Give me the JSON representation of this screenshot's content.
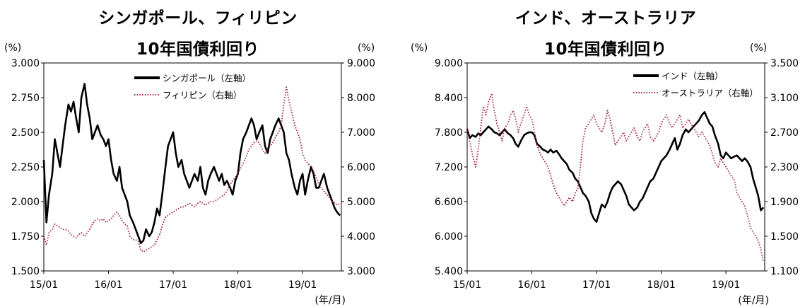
{
  "chart_data": [
    {
      "type": "line",
      "title": "シンガポール、フィリピン",
      "subtitle": "10年国債利回り",
      "ylabel_left": "(%)",
      "ylabel_right": "(%)",
      "xlabel": "(年/月)",
      "x_ticks": [
        "15/01",
        "16/01",
        "17/01",
        "18/01",
        "19/01"
      ],
      "y_left_ticks": [
        "3.000",
        "2.750",
        "2.500",
        "2.250",
        "2.000",
        "1.750",
        "1.500"
      ],
      "y_right_ticks": [
        "9.000",
        "8.000",
        "7.000",
        "6.000",
        "5.000",
        "4.000",
        "3.000"
      ],
      "ylim_left": [
        1.5,
        3.0
      ],
      "ylim_right": [
        3.0,
        9.0
      ],
      "xlim": [
        2015.0,
        2019.6
      ],
      "legend_position": "top-center",
      "series": [
        {
          "name": "シンガポール（左軸）",
          "axis": "left",
          "color": "#000000",
          "style": "solid",
          "x": [
            2015.0,
            2015.04,
            2015.08,
            2015.13,
            2015.17,
            2015.21,
            2015.25,
            2015.29,
            2015.33,
            2015.38,
            2015.42,
            2015.46,
            2015.5,
            2015.54,
            2015.58,
            2015.63,
            2015.67,
            2015.71,
            2015.75,
            2015.79,
            2015.83,
            2015.88,
            2015.92,
            2015.96,
            2016.0,
            2016.04,
            2016.08,
            2016.13,
            2016.17,
            2016.21,
            2016.25,
            2016.29,
            2016.33,
            2016.38,
            2016.42,
            2016.46,
            2016.5,
            2016.54,
            2016.58,
            2016.63,
            2016.67,
            2016.71,
            2016.75,
            2016.79,
            2016.83,
            2016.88,
            2016.92,
            2016.96,
            2017.0,
            2017.04,
            2017.08,
            2017.13,
            2017.17,
            2017.21,
            2017.25,
            2017.29,
            2017.33,
            2017.38,
            2017.42,
            2017.46,
            2017.5,
            2017.54,
            2017.58,
            2017.63,
            2017.67,
            2017.71,
            2017.75,
            2017.79,
            2017.83,
            2017.88,
            2017.92,
            2017.96,
            2018.0,
            2018.04,
            2018.08,
            2018.13,
            2018.17,
            2018.21,
            2018.25,
            2018.29,
            2018.33,
            2018.38,
            2018.42,
            2018.46,
            2018.5,
            2018.54,
            2018.58,
            2018.63,
            2018.67,
            2018.71,
            2018.75,
            2018.79,
            2018.83,
            2018.88,
            2018.92,
            2018.96,
            2019.0,
            2019.04,
            2019.08,
            2019.13,
            2019.17,
            2019.21,
            2019.25,
            2019.29,
            2019.33,
            2019.38,
            2019.42,
            2019.46,
            2019.5,
            2019.54,
            2019.58
          ],
          "values": [
            2.3,
            1.85,
            2.05,
            2.2,
            2.45,
            2.35,
            2.25,
            2.4,
            2.55,
            2.7,
            2.65,
            2.72,
            2.6,
            2.5,
            2.75,
            2.85,
            2.7,
            2.6,
            2.45,
            2.5,
            2.55,
            2.48,
            2.45,
            2.4,
            2.45,
            2.3,
            2.2,
            2.15,
            2.25,
            2.1,
            2.05,
            2.0,
            1.9,
            1.85,
            1.8,
            1.75,
            1.7,
            1.72,
            1.8,
            1.75,
            1.78,
            1.85,
            1.95,
            1.9,
            2.05,
            2.25,
            2.4,
            2.45,
            2.5,
            2.35,
            2.25,
            2.3,
            2.2,
            2.15,
            2.1,
            2.15,
            2.2,
            2.15,
            2.25,
            2.1,
            2.05,
            2.15,
            2.2,
            2.25,
            2.2,
            2.15,
            2.2,
            2.12,
            2.15,
            2.1,
            2.05,
            2.15,
            2.2,
            2.35,
            2.45,
            2.5,
            2.55,
            2.6,
            2.55,
            2.45,
            2.5,
            2.55,
            2.4,
            2.35,
            2.45,
            2.5,
            2.55,
            2.6,
            2.55,
            2.5,
            2.35,
            2.3,
            2.2,
            2.1,
            2.05,
            2.15,
            2.2,
            2.05,
            2.15,
            2.25,
            2.2,
            2.1,
            2.1,
            2.15,
            2.2,
            2.1,
            2.05,
            2.0,
            1.95,
            1.92,
            1.9
          ]
        },
        {
          "name": "フィリピン（右軸）",
          "axis": "right",
          "color": "#a51b3b",
          "style": "dotted",
          "x": [
            2015.0,
            2015.04,
            2015.08,
            2015.13,
            2015.17,
            2015.21,
            2015.25,
            2015.29,
            2015.33,
            2015.38,
            2015.42,
            2015.46,
            2015.5,
            2015.54,
            2015.58,
            2015.63,
            2015.67,
            2015.71,
            2015.75,
            2015.79,
            2015.83,
            2015.88,
            2015.92,
            2015.96,
            2016.0,
            2016.04,
            2016.08,
            2016.13,
            2016.17,
            2016.21,
            2016.25,
            2016.29,
            2016.33,
            2016.38,
            2016.42,
            2016.46,
            2016.5,
            2016.54,
            2016.58,
            2016.63,
            2016.67,
            2016.71,
            2016.75,
            2016.79,
            2016.83,
            2016.88,
            2016.92,
            2016.96,
            2017.0,
            2017.04,
            2017.08,
            2017.13,
            2017.17,
            2017.21,
            2017.25,
            2017.29,
            2017.33,
            2017.38,
            2017.42,
            2017.46,
            2017.5,
            2017.54,
            2017.58,
            2017.63,
            2017.67,
            2017.71,
            2017.75,
            2017.79,
            2017.83,
            2017.88,
            2017.92,
            2017.96,
            2018.0,
            2018.04,
            2018.08,
            2018.13,
            2018.17,
            2018.21,
            2018.25,
            2018.29,
            2018.33,
            2018.38,
            2018.42,
            2018.46,
            2018.5,
            2018.54,
            2018.58,
            2018.63,
            2018.67,
            2018.71,
            2018.75,
            2018.79,
            2018.83,
            2018.88,
            2018.92,
            2018.96,
            2019.0,
            2019.04,
            2019.08,
            2019.13,
            2019.17,
            2019.21,
            2019.25,
            2019.29,
            2019.33,
            2019.38,
            2019.42,
            2019.46,
            2019.5,
            2019.54,
            2019.58
          ],
          "values": [
            4.0,
            3.75,
            4.1,
            4.2,
            4.35,
            4.3,
            4.25,
            4.2,
            4.2,
            4.15,
            4.05,
            4.0,
            3.95,
            4.05,
            4.1,
            4.0,
            4.1,
            4.2,
            4.35,
            4.45,
            4.5,
            4.45,
            4.5,
            4.4,
            4.45,
            4.5,
            4.6,
            4.7,
            4.6,
            4.45,
            4.35,
            4.3,
            4.0,
            3.9,
            3.9,
            3.85,
            3.6,
            3.55,
            3.6,
            3.65,
            3.7,
            3.75,
            3.9,
            4.05,
            4.3,
            4.55,
            4.6,
            4.65,
            4.7,
            4.75,
            4.8,
            4.85,
            4.85,
            4.9,
            4.95,
            4.9,
            4.85,
            4.95,
            5.0,
            4.95,
            4.9,
            4.95,
            5.0,
            5.0,
            5.05,
            5.1,
            5.15,
            5.2,
            5.3,
            5.5,
            5.6,
            5.7,
            5.8,
            5.95,
            6.1,
            6.3,
            6.5,
            6.6,
            6.7,
            6.75,
            6.7,
            6.5,
            6.4,
            6.55,
            6.6,
            6.7,
            6.85,
            7.0,
            7.2,
            7.8,
            8.3,
            7.9,
            7.6,
            7.2,
            7.0,
            6.8,
            6.4,
            6.2,
            6.1,
            6.0,
            5.9,
            5.7,
            5.5,
            5.4,
            5.3,
            5.2,
            5.1,
            5.0,
            4.95,
            4.9,
            4.95
          ]
        }
      ]
    },
    {
      "type": "line",
      "title": "インド、オーストラリア",
      "subtitle": "10年国債利回り",
      "ylabel_left": "(%)",
      "ylabel_right": "(%)",
      "xlabel": "(年/月)",
      "x_ticks": [
        "15/01",
        "16/01",
        "17/01",
        "18/01",
        "19/01"
      ],
      "y_left_ticks": [
        "9.000",
        "8.400",
        "7.800",
        "7.200",
        "6.600",
        "6.000",
        "5.400"
      ],
      "y_right_ticks": [
        "3.500",
        "3.100",
        "2.700",
        "2.300",
        "1.900",
        "1.500",
        "1.100"
      ],
      "ylim_left": [
        5.4,
        9.0
      ],
      "ylim_right": [
        1.1,
        3.5
      ],
      "xlim": [
        2015.0,
        2019.6
      ],
      "legend_position": "top-right",
      "series": [
        {
          "name": "インド（左軸）",
          "axis": "left",
          "color": "#000000",
          "style": "solid",
          "x": [
            2015.0,
            2015.04,
            2015.08,
            2015.13,
            2015.17,
            2015.21,
            2015.25,
            2015.29,
            2015.33,
            2015.38,
            2015.42,
            2015.46,
            2015.5,
            2015.54,
            2015.58,
            2015.63,
            2015.67,
            2015.71,
            2015.75,
            2015.79,
            2015.83,
            2015.88,
            2015.92,
            2015.96,
            2016.0,
            2016.04,
            2016.08,
            2016.13,
            2016.17,
            2016.21,
            2016.25,
            2016.29,
            2016.33,
            2016.38,
            2016.42,
            2016.46,
            2016.5,
            2016.54,
            2016.58,
            2016.63,
            2016.67,
            2016.71,
            2016.75,
            2016.79,
            2016.83,
            2016.88,
            2016.92,
            2016.96,
            2017.0,
            2017.04,
            2017.08,
            2017.13,
            2017.17,
            2017.21,
            2017.25,
            2017.29,
            2017.33,
            2017.38,
            2017.42,
            2017.46,
            2017.5,
            2017.54,
            2017.58,
            2017.63,
            2017.67,
            2017.71,
            2017.75,
            2017.79,
            2017.83,
            2017.88,
            2017.92,
            2017.96,
            2018.0,
            2018.04,
            2018.08,
            2018.13,
            2018.17,
            2018.21,
            2018.25,
            2018.29,
            2018.33,
            2018.38,
            2018.42,
            2018.46,
            2018.5,
            2018.54,
            2018.58,
            2018.63,
            2018.67,
            2018.71,
            2018.75,
            2018.79,
            2018.83,
            2018.88,
            2018.92,
            2018.96,
            2019.0,
            2019.04,
            2019.08,
            2019.13,
            2019.17,
            2019.21,
            2019.25,
            2019.29,
            2019.33,
            2019.38,
            2019.42,
            2019.46,
            2019.5,
            2019.54,
            2019.58
          ],
          "values": [
            7.85,
            7.7,
            7.75,
            7.72,
            7.78,
            7.75,
            7.8,
            7.85,
            7.9,
            7.85,
            7.8,
            7.78,
            7.75,
            7.8,
            7.85,
            7.78,
            7.75,
            7.7,
            7.6,
            7.55,
            7.65,
            7.75,
            7.78,
            7.8,
            7.8,
            7.75,
            7.6,
            7.55,
            7.5,
            7.48,
            7.45,
            7.5,
            7.45,
            7.48,
            7.42,
            7.35,
            7.3,
            7.25,
            7.15,
            7.1,
            7.0,
            6.95,
            6.85,
            6.75,
            6.7,
            6.6,
            6.4,
            6.3,
            6.25,
            6.4,
            6.55,
            6.5,
            6.6,
            6.75,
            6.85,
            6.9,
            6.95,
            6.9,
            6.8,
            6.7,
            6.55,
            6.5,
            6.45,
            6.5,
            6.6,
            6.65,
            6.75,
            6.85,
            6.95,
            7.0,
            7.1,
            7.2,
            7.3,
            7.35,
            7.4,
            7.5,
            7.6,
            7.7,
            7.5,
            7.6,
            7.75,
            7.85,
            7.8,
            7.85,
            7.9,
            7.95,
            8.0,
            8.1,
            8.15,
            8.05,
            7.95,
            7.9,
            7.75,
            7.6,
            7.4,
            7.35,
            7.45,
            7.4,
            7.35,
            7.38,
            7.4,
            7.35,
            7.3,
            7.35,
            7.3,
            7.2,
            7.0,
            6.85,
            6.7,
            6.45,
            6.5
          ]
        },
        {
          "name": "オーストラリア（右軸）",
          "axis": "right",
          "color": "#a51b3b",
          "style": "dotted",
          "x": [
            2015.0,
            2015.04,
            2015.08,
            2015.13,
            2015.17,
            2015.21,
            2015.25,
            2015.29,
            2015.33,
            2015.38,
            2015.42,
            2015.46,
            2015.5,
            2015.54,
            2015.58,
            2015.63,
            2015.67,
            2015.71,
            2015.75,
            2015.79,
            2015.83,
            2015.88,
            2015.92,
            2015.96,
            2016.0,
            2016.04,
            2016.08,
            2016.13,
            2016.17,
            2016.21,
            2016.25,
            2016.29,
            2016.33,
            2016.38,
            2016.42,
            2016.46,
            2016.5,
            2016.54,
            2016.58,
            2016.63,
            2016.67,
            2016.71,
            2016.75,
            2016.79,
            2016.83,
            2016.88,
            2016.92,
            2016.96,
            2017.0,
            2017.04,
            2017.08,
            2017.13,
            2017.17,
            2017.21,
            2017.25,
            2017.29,
            2017.33,
            2017.38,
            2017.42,
            2017.46,
            2017.5,
            2017.54,
            2017.58,
            2017.63,
            2017.67,
            2017.71,
            2017.75,
            2017.79,
            2017.83,
            2017.88,
            2017.92,
            2017.96,
            2018.0,
            2018.04,
            2018.08,
            2018.13,
            2018.17,
            2018.21,
            2018.25,
            2018.29,
            2018.33,
            2018.38,
            2018.42,
            2018.46,
            2018.5,
            2018.54,
            2018.58,
            2018.63,
            2018.67,
            2018.71,
            2018.75,
            2018.79,
            2018.83,
            2018.88,
            2018.92,
            2018.96,
            2019.0,
            2019.04,
            2019.08,
            2019.13,
            2019.17,
            2019.21,
            2019.25,
            2019.29,
            2019.33,
            2019.38,
            2019.42,
            2019.46,
            2019.5,
            2019.54,
            2019.58
          ],
          "values": [
            2.75,
            2.6,
            2.45,
            2.3,
            2.5,
            2.75,
            3.0,
            2.9,
            3.05,
            3.15,
            2.95,
            2.8,
            2.7,
            2.6,
            2.75,
            2.8,
            2.9,
            2.95,
            2.85,
            2.7,
            2.8,
            2.9,
            3.0,
            2.9,
            2.85,
            2.7,
            2.55,
            2.45,
            2.4,
            2.35,
            2.3,
            2.2,
            2.1,
            2.0,
            1.95,
            1.9,
            1.85,
            1.9,
            1.95,
            1.9,
            2.0,
            2.05,
            2.3,
            2.6,
            2.75,
            2.8,
            2.85,
            2.9,
            2.8,
            2.75,
            2.7,
            2.8,
            2.95,
            2.85,
            2.7,
            2.55,
            2.6,
            2.65,
            2.7,
            2.6,
            2.65,
            2.7,
            2.75,
            2.65,
            2.6,
            2.7,
            2.75,
            2.8,
            2.65,
            2.6,
            2.65,
            2.7,
            2.8,
            2.85,
            2.9,
            2.8,
            2.75,
            2.8,
            2.85,
            2.9,
            2.75,
            2.8,
            2.85,
            2.8,
            2.75,
            2.7,
            2.65,
            2.7,
            2.65,
            2.6,
            2.55,
            2.45,
            2.35,
            2.3,
            2.4,
            2.35,
            2.3,
            2.25,
            2.2,
            2.15,
            2.0,
            1.95,
            1.9,
            1.85,
            1.75,
            1.6,
            1.55,
            1.5,
            1.45,
            1.35,
            1.2
          ]
        }
      ]
    }
  ]
}
